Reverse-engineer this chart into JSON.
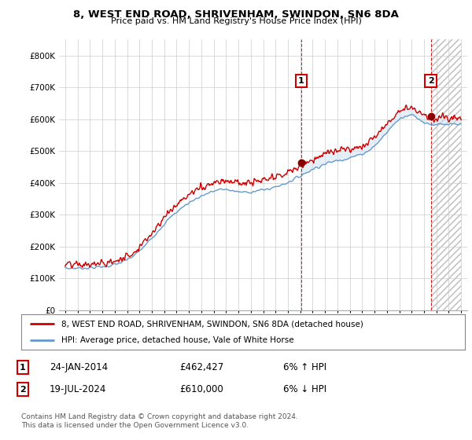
{
  "title": "8, WEST END ROAD, SHRIVENHAM, SWINDON, SN6 8DA",
  "subtitle": "Price paid vs. HM Land Registry's House Price Index (HPI)",
  "ylim": [
    0,
    850000
  ],
  "yticks": [
    0,
    100000,
    200000,
    300000,
    400000,
    500000,
    600000,
    700000,
    800000
  ],
  "ytick_labels": [
    "£0",
    "£100K",
    "£200K",
    "£300K",
    "£400K",
    "£500K",
    "£600K",
    "£700K",
    "£800K"
  ],
  "legend_line1": "8, WEST END ROAD, SHRIVENHAM, SWINDON, SN6 8DA (detached house)",
  "legend_line2": "HPI: Average price, detached house, Vale of White Horse",
  "sale1_date": "24-JAN-2014",
  "sale1_price": "£462,427",
  "sale1_change": "6% ↑ HPI",
  "sale2_date": "19-JUL-2024",
  "sale2_price": "£610,000",
  "sale2_change": "6% ↓ HPI",
  "footer": "Contains HM Land Registry data © Crown copyright and database right 2024.\nThis data is licensed under the Open Government Licence v3.0.",
  "price_color": "#cc0000",
  "hpi_color": "#6699cc",
  "fill_color": "#cce0f0",
  "marker1_x_year": 2014.07,
  "marker2_x_year": 2024.55,
  "marker1_y": 462427,
  "marker2_y": 610000,
  "bg_color": "#ffffff",
  "grid_color": "#cccccc",
  "xlim_left": 1994.5,
  "xlim_right": 2027.5,
  "xstart": 1995,
  "xend": 2027
}
